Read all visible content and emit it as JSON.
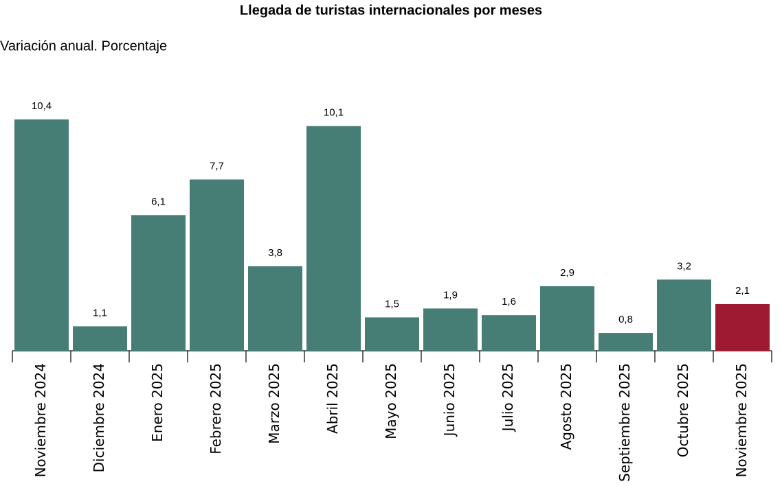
{
  "chart_data": {
    "type": "bar",
    "title": "Llegada de turistas internacionales por meses",
    "subtitle": "Variación anual. Porcentaje",
    "categories": [
      "Noviembre 2024",
      "Diciembre 2024",
      "Enero 2025",
      "Febrero 2025",
      "Marzo 2025",
      "Abril 2025",
      "Mayo 2025",
      "Junio 2025",
      "Julio 2025",
      "Agosto 2025",
      "Septiembre 2025",
      "Octubre 2025",
      "Noviembre 2025"
    ],
    "values": [
      10.4,
      1.1,
      6.1,
      7.7,
      3.8,
      10.1,
      1.5,
      1.9,
      1.6,
      2.9,
      0.8,
      3.2,
      2.1
    ],
    "value_labels": [
      "10,4",
      "1,1",
      "6,1",
      "7,7",
      "3,8",
      "10,1",
      "1,5",
      "1,9",
      "1,6",
      "2,9",
      "0,8",
      "3,2",
      "2,1"
    ],
    "colors": [
      "#467d74",
      "#467d74",
      "#467d74",
      "#467d74",
      "#467d74",
      "#467d74",
      "#467d74",
      "#467d74",
      "#467d74",
      "#467d74",
      "#467d74",
      "#467d74",
      "#9e1a32"
    ]
  }
}
